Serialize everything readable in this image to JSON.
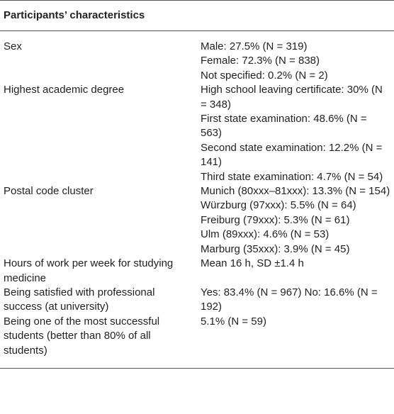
{
  "table": {
    "header": "Participants’ characteristics",
    "rows": [
      {
        "label": "Sex",
        "values": [
          "Male: 27.5% (N = 319)",
          "Female: 72.3% (N = 838)",
          "Not specified: 0.2% (N = 2)"
        ]
      },
      {
        "label": "Highest academic degree",
        "values": [
          "High school leaving certificate: 30% (N = 348)",
          "First state examination: 48.6% (N = 563)",
          "Second state examination: 12.2% (N = 141)",
          "Third state examination: 4.7% (N = 54)"
        ]
      },
      {
        "label": "Postal code cluster",
        "values": [
          "Munich (80xxx–81xxx): 13.3% (N = 154)",
          "Würzburg (97xxx): 5.5% (N = 64)",
          "Freiburg (79xxx): 5.3% (N = 61)",
          "Ulm (89xxx): 4.6% (N = 53)",
          "Marburg (35xxx): 3.9% (N = 45)"
        ]
      },
      {
        "label": "Hours of work per week for studying medicine",
        "values": [
          "Mean 16 h, SD ±1.4 h"
        ]
      },
      {
        "label": "Being satisfied with professional success (at university)",
        "values": [
          "Yes: 83.4% (N = 967) No: 16.6% (N = 192)"
        ]
      },
      {
        "label": "Being one of the most successful students (better than 80% of all students)",
        "values": [
          "5.1% (N = 59)"
        ]
      }
    ]
  }
}
